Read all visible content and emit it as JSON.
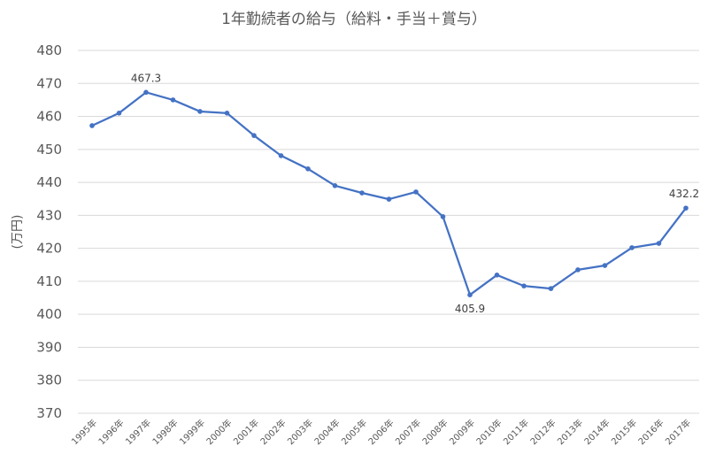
{
  "chart_data": {
    "type": "line",
    "title": "1年勤続者の給与（給料・手当＋賞与）",
    "xlabel": "",
    "ylabel": "(万円)",
    "ylim": [
      370,
      480
    ],
    "yticks": [
      370,
      380,
      390,
      400,
      410,
      420,
      430,
      440,
      450,
      460,
      470,
      480
    ],
    "grid": true,
    "legend": "none",
    "color": "#4472C4",
    "categories": [
      "1995年",
      "1996年",
      "1997年",
      "1998年",
      "1999年",
      "2000年",
      "2001年",
      "2002年",
      "2003年",
      "2004年",
      "2005年",
      "2006年",
      "2007年",
      "2008年",
      "2009年",
      "2010年",
      "2011年",
      "2012年",
      "2013年",
      "2014年",
      "2015年",
      "2016年",
      "2017年"
    ],
    "values": [
      457.2,
      461.0,
      467.3,
      465.0,
      461.5,
      461.0,
      454.2,
      448.1,
      444.1,
      439.0,
      436.8,
      434.9,
      437.1,
      429.6,
      405.9,
      411.9,
      408.6,
      407.8,
      413.5,
      414.8,
      420.2,
      421.5,
      432.2
    ],
    "data_labels": [
      {
        "category": "1997年",
        "text": "467.3"
      },
      {
        "category": "2009年",
        "text": "405.9"
      },
      {
        "category": "2017年",
        "text": "432.2"
      }
    ]
  }
}
